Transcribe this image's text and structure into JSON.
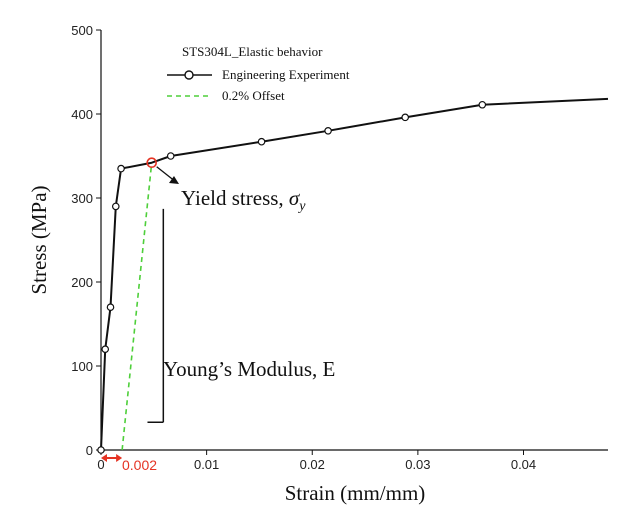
{
  "chart_data": {
    "type": "line",
    "legend_title": "STS304L_Elastic behavior",
    "legend_placement": "top-left",
    "xlabel": "Strain (mm/mm)",
    "ylabel": "Stress (MPa)",
    "xlim": [
      0,
      0.048
    ],
    "ylim": [
      0,
      500
    ],
    "xticks": [
      0,
      0.01,
      0.02,
      0.03,
      0.04
    ],
    "xtick_labels": [
      "0",
      "0.01",
      "0.02",
      "0.03",
      "0.04"
    ],
    "yticks": [
      0,
      100,
      200,
      300,
      400,
      500
    ],
    "grid": false,
    "series": [
      {
        "name": "Engineering Experiment",
        "style": "solid-with-circle-markers",
        "color": "#111111",
        "points": [
          [
            0,
            0
          ],
          [
            0.0004,
            120
          ],
          [
            0.0009,
            170
          ],
          [
            0.0014,
            290
          ],
          [
            0.0019,
            335
          ],
          [
            0.0048,
            342
          ],
          [
            0.0066,
            350
          ],
          [
            0.0152,
            367
          ],
          [
            0.0215,
            380
          ],
          [
            0.0288,
            396
          ],
          [
            0.0361,
            411
          ],
          [
            0.048,
            418
          ]
        ],
        "markers": [
          [
            0,
            0
          ],
          [
            0.0004,
            120
          ],
          [
            0.0009,
            170
          ],
          [
            0.0014,
            290
          ],
          [
            0.0019,
            335
          ],
          [
            0.0066,
            350
          ],
          [
            0.0152,
            367
          ],
          [
            0.0215,
            380
          ],
          [
            0.0288,
            396
          ],
          [
            0.0361,
            411
          ]
        ]
      },
      {
        "name": "0.2% Offset",
        "style": "dashed",
        "color": "#4ecf3a",
        "points": [
          [
            0.002,
            0
          ],
          [
            0.0048,
            342
          ]
        ]
      }
    ],
    "annotations": {
      "yield_label_text": "Yield stress, ",
      "yield_symbol": "σ",
      "yield_subscript": "y",
      "yield_point": [
        0.0048,
        342
      ],
      "yield_color": "#e53323",
      "modulus_label": "Young’s Modulus, E",
      "modulus_triangle": {
        "x1": 0.0044,
        "x2": 0.0059,
        "y1": 33,
        "y2": 287
      },
      "offset_label": "0.002",
      "offset_color": "#e53323",
      "offset_span": [
        0,
        0.002
      ]
    }
  }
}
